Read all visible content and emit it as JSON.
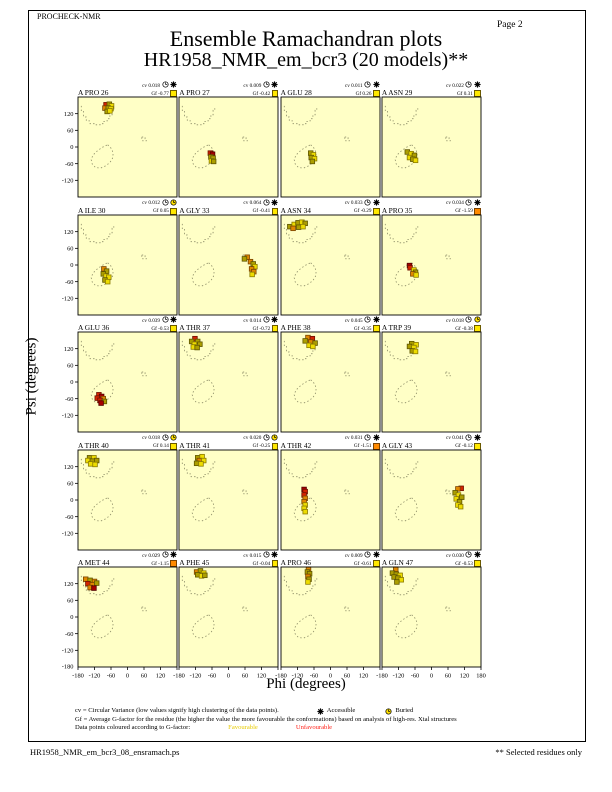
{
  "page": {
    "app_label": "PROCHECK-NMR",
    "page_label": "Page  2",
    "title": "Ensemble Ramachandran plots",
    "subtitle": "HR1958_NMR_em_bcr3 (20 models)**",
    "footer_left": "HR1958_NMR_em_bcr3_08_ensramach.ps",
    "footer_right": "** Selected residues only"
  },
  "labels": {
    "cv_prefix": "cv",
    "gf_prefix": "Gf"
  },
  "legend": {
    "line1": "cv = Circular Variance (low values signify high clustering of the data points).",
    "accessible_label": "Accessible",
    "buried_label": "Buried",
    "line2": "Gf = Average G-factor for the residue (the higher the value the more favourable the conformations) based on analysis of high-res. Xtal structures",
    "line3": "Data points coloured according to G-factor:",
    "favourable_label": "Favourable",
    "unfavourable_label": "Unfavourable"
  },
  "colors": {
    "plot_bg": "#FFFFC6",
    "region_dots": "#8B8B66",
    "gf_favourable": "#FFE800",
    "gf_unfavourable": "#FF8A00",
    "buried_icon_fill": "#FFE000",
    "point_colors": {
      "Y": "#EDDC00",
      "O": "#AC9E00",
      "G": "#E08800",
      "R": "#D42400",
      "D": "#A60000"
    },
    "point_strokes": {
      "Y": "#8A7A00",
      "O": "#5F5600",
      "G": "#7A4400",
      "R": "#6E1000",
      "D": "#550000"
    }
  },
  "axes": {
    "xlabel": "Phi (degrees)",
    "ylabel": "Psi (degrees)",
    "x_ticks": [
      -180,
      -120,
      -60,
      0,
      60,
      120,
      180
    ],
    "y_ticks": [
      120,
      60,
      0,
      -60,
      -120
    ],
    "y_bottom_tick": -180,
    "x_range": [
      -180,
      180
    ],
    "y_range": [
      -180,
      180
    ]
  },
  "chart_data": {
    "type": "scatter",
    "grid": {
      "cols": 4,
      "rows": 5
    },
    "regions": {
      "beta": [
        [
          -168,
          148
        ],
        [
          -168,
          128
        ],
        [
          -160,
          128
        ],
        [
          -160,
          108
        ],
        [
          -150,
          108
        ],
        [
          -150,
          94
        ],
        [
          -136,
          94
        ],
        [
          -136,
          84
        ],
        [
          -120,
          84
        ],
        [
          -120,
          80
        ],
        [
          -100,
          80
        ],
        [
          -100,
          84
        ],
        [
          -86,
          84
        ],
        [
          -86,
          92
        ],
        [
          -74,
          92
        ],
        [
          -74,
          102
        ],
        [
          -64,
          102
        ],
        [
          -64,
          116
        ],
        [
          -56,
          116
        ],
        [
          -56,
          132
        ],
        [
          -50,
          132
        ],
        [
          -50,
          146
        ]
      ],
      "alpha": [
        [
          -72,
          8
        ],
        [
          -58,
          -6
        ],
        [
          -52,
          -22
        ],
        [
          -54,
          -40
        ],
        [
          -64,
          -56
        ],
        [
          -80,
          -68
        ],
        [
          -98,
          -76
        ],
        [
          -116,
          -74
        ],
        [
          -128,
          -62
        ],
        [
          -132,
          -46
        ],
        [
          -126,
          -30
        ],
        [
          -112,
          -16
        ],
        [
          -96,
          -4
        ],
        [
          -82,
          4
        ],
        [
          -72,
          8
        ]
      ],
      "lalpha": [
        [
          52,
          36
        ],
        [
          64,
          36
        ],
        [
          64,
          30
        ],
        [
          68,
          30
        ],
        [
          68,
          22
        ],
        [
          56,
          22
        ],
        [
          56,
          28
        ],
        [
          52,
          28
        ],
        [
          52,
          36
        ]
      ]
    },
    "plots": [
      {
        "name": "A PRO 26",
        "cv": "0.018",
        "gf": "-0.77",
        "buried": false,
        "gf_class": "fav",
        "points": [
          [
            -78,
            152,
            "R"
          ],
          [
            -66,
            154,
            "O"
          ],
          [
            -58,
            148,
            "Y"
          ],
          [
            -82,
            140,
            "G"
          ],
          [
            -70,
            140,
            "O"
          ],
          [
            -60,
            138,
            "Y"
          ],
          [
            -74,
            128,
            "O"
          ],
          [
            -64,
            130,
            "Y"
          ]
        ]
      },
      {
        "name": "A PRO 27",
        "cv": "0.009",
        "gf": "-0.42",
        "buried": false,
        "gf_class": "fav",
        "points": [
          [
            -66,
            -22,
            "R"
          ],
          [
            -58,
            -26,
            "D"
          ],
          [
            -64,
            -36,
            "O"
          ],
          [
            -56,
            -40,
            "O"
          ],
          [
            -62,
            -50,
            "Y"
          ],
          [
            -54,
            -52,
            "O"
          ]
        ]
      },
      {
        "name": "A GLU 28",
        "cv": "0.011",
        "gf": "0.26",
        "buried": false,
        "gf_class": "fav",
        "points": [
          [
            -72,
            -22,
            "O"
          ],
          [
            -62,
            -28,
            "Y"
          ],
          [
            -70,
            -38,
            "O"
          ],
          [
            -58,
            -42,
            "Y"
          ],
          [
            -66,
            -52,
            "O"
          ]
        ]
      },
      {
        "name": "A ASN 29",
        "cv": "0.022",
        "gf": "0.31",
        "buried": false,
        "gf_class": "fav",
        "points": [
          [
            -88,
            -18,
            "O"
          ],
          [
            -74,
            -24,
            "Y"
          ],
          [
            -62,
            -30,
            "O"
          ],
          [
            -80,
            -38,
            "Y"
          ],
          [
            -68,
            -44,
            "O"
          ],
          [
            -58,
            -48,
            "Y"
          ]
        ]
      },
      {
        "name": "A ILE 30",
        "cv": "0.012",
        "gf": "0.05",
        "buried": true,
        "gf_class": "fav",
        "points": [
          [
            -86,
            -14,
            "G"
          ],
          [
            -76,
            -22,
            "O"
          ],
          [
            -88,
            -32,
            "O"
          ],
          [
            -78,
            -40,
            "Y"
          ],
          [
            -68,
            -44,
            "Y"
          ],
          [
            -82,
            -54,
            "O"
          ],
          [
            -72,
            -60,
            "Y"
          ]
        ]
      },
      {
        "name": "A GLY 33",
        "cv": "0.064",
        "gf": "-0.41",
        "buried": false,
        "gf_class": "fav",
        "points": [
          [
            68,
            28,
            "G"
          ],
          [
            58,
            22,
            "O"
          ],
          [
            80,
            12,
            "G"
          ],
          [
            90,
            4,
            "O"
          ],
          [
            96,
            -6,
            "Y"
          ],
          [
            84,
            -14,
            "G"
          ],
          [
            92,
            -24,
            "G"
          ],
          [
            86,
            -34,
            "Y"
          ]
        ]
      },
      {
        "name": "A ASN 34",
        "cv": "0.033",
        "gf": "-0.29",
        "buried": false,
        "gf_class": "fav",
        "points": [
          [
            -148,
            138,
            "O"
          ],
          [
            -132,
            146,
            "Y"
          ],
          [
            -118,
            152,
            "O"
          ],
          [
            -104,
            154,
            "Y"
          ],
          [
            -92,
            150,
            "O"
          ],
          [
            -136,
            132,
            "G"
          ],
          [
            -116,
            136,
            "O"
          ],
          [
            -100,
            138,
            "Y"
          ]
        ]
      },
      {
        "name": "A PRO 35",
        "cv": "0.034",
        "gf": "-1.59",
        "buried": false,
        "gf_class": "unfav",
        "points": [
          [
            -80,
            -2,
            "D"
          ],
          [
            -78,
            -10,
            "R"
          ],
          [
            -64,
            -18,
            "Y"
          ],
          [
            -58,
            -26,
            "O"
          ],
          [
            -68,
            -32,
            "G"
          ],
          [
            -56,
            -36,
            "Y"
          ]
        ]
      },
      {
        "name": "A GLU 36",
        "cv": "0.039",
        "gf": "-0.53",
        "buried": false,
        "gf_class": "fav",
        "points": [
          [
            -104,
            -46,
            "R"
          ],
          [
            -94,
            -52,
            "D"
          ],
          [
            -110,
            -58,
            "R"
          ],
          [
            -88,
            -60,
            "G"
          ],
          [
            -100,
            -66,
            "R"
          ],
          [
            -84,
            -70,
            "O"
          ],
          [
            -96,
            -76,
            "D"
          ]
        ]
      },
      {
        "name": "A THR 37",
        "cv": "0.014",
        "gf": "-0.72",
        "buried": false,
        "gf_class": "fav",
        "points": [
          [
            -122,
            156,
            "R"
          ],
          [
            -134,
            146,
            "O"
          ],
          [
            -112,
            146,
            "O"
          ],
          [
            -124,
            136,
            "Y"
          ],
          [
            -104,
            136,
            "O"
          ],
          [
            -128,
            126,
            "Y"
          ],
          [
            -114,
            124,
            "O"
          ]
        ]
      },
      {
        "name": "A PHE 38",
        "cv": "0.045",
        "gf": "-0.35",
        "buried": false,
        "gf_class": "fav",
        "points": [
          [
            -82,
            160,
            "G"
          ],
          [
            -66,
            156,
            "R"
          ],
          [
            -92,
            148,
            "O"
          ],
          [
            -72,
            144,
            "G"
          ],
          [
            -56,
            140,
            "O"
          ],
          [
            -78,
            132,
            "Y"
          ],
          [
            -64,
            128,
            "Y"
          ]
        ]
      },
      {
        "name": "A TRP 39",
        "cv": "0.018",
        "gf": "-0.38",
        "buried": true,
        "gf_class": "fav",
        "points": [
          [
            -72,
            138,
            "O"
          ],
          [
            -56,
            134,
            "Y"
          ],
          [
            -80,
            128,
            "O"
          ],
          [
            -64,
            124,
            "Y"
          ],
          [
            -70,
            112,
            "O"
          ],
          [
            -58,
            110,
            "Y"
          ]
        ]
      },
      {
        "name": "A THR 40",
        "cv": "0.018",
        "gf": "0.14",
        "buried": true,
        "gf_class": "fav",
        "points": [
          [
            -138,
            152,
            "O"
          ],
          [
            -122,
            152,
            "Y"
          ],
          [
            -144,
            142,
            "Y"
          ],
          [
            -128,
            140,
            "O"
          ],
          [
            -112,
            142,
            "O"
          ],
          [
            -134,
            130,
            "Y"
          ],
          [
            -118,
            128,
            "Y"
          ]
        ]
      },
      {
        "name": "A THR 41",
        "cv": "0.020",
        "gf": "-0.25",
        "buried": true,
        "gf_class": "fav",
        "points": [
          [
            -112,
            152,
            "O"
          ],
          [
            -96,
            156,
            "Y"
          ],
          [
            -106,
            142,
            "G"
          ],
          [
            -90,
            142,
            "Y"
          ],
          [
            -116,
            132,
            "O"
          ],
          [
            -100,
            130,
            "Y"
          ]
        ]
      },
      {
        "name": "A THR 42",
        "cv": "0.031",
        "gf": "-1.51",
        "buried": false,
        "gf_class": "unfav",
        "points": [
          [
            -96,
            38,
            "D"
          ],
          [
            -92,
            30,
            "R"
          ],
          [
            -96,
            18,
            "R"
          ],
          [
            -92,
            6,
            "G"
          ],
          [
            -96,
            -6,
            "G"
          ],
          [
            -92,
            -18,
            "Y"
          ],
          [
            -96,
            -30,
            "Y"
          ],
          [
            -92,
            -42,
            "Y"
          ]
        ]
      },
      {
        "name": "A GLY 43",
        "cv": "0.041",
        "gf": "-0.12",
        "buried": false,
        "gf_class": "fav",
        "points": [
          [
            108,
            42,
            "R"
          ],
          [
            96,
            40,
            "G"
          ],
          [
            86,
            26,
            "O"
          ],
          [
            98,
            18,
            "Y"
          ],
          [
            110,
            10,
            "O"
          ],
          [
            90,
            4,
            "Y"
          ],
          [
            102,
            -6,
            "O"
          ],
          [
            96,
            -18,
            "Y"
          ],
          [
            106,
            -24,
            "Y"
          ]
        ]
      },
      {
        "name": "A MET 44",
        "cv": "0.029",
        "gf": "-1.15",
        "buried": false,
        "gf_class": "unfav",
        "points": [
          [
            -152,
            136,
            "G"
          ],
          [
            -136,
            132,
            "O"
          ],
          [
            -120,
            128,
            "G"
          ],
          [
            -144,
            120,
            "R"
          ],
          [
            -128,
            116,
            "G"
          ],
          [
            -112,
            122,
            "O"
          ],
          [
            -136,
            106,
            "G"
          ],
          [
            -122,
            104,
            "D"
          ]
        ]
      },
      {
        "name": "A PHE 45",
        "cv": "0.015",
        "gf": "-0.04",
        "buried": false,
        "gf_class": "fav",
        "points": [
          [
            -116,
            162,
            "G"
          ],
          [
            -102,
            166,
            "O"
          ],
          [
            -90,
            158,
            "Y"
          ],
          [
            -112,
            152,
            "O"
          ],
          [
            -98,
            148,
            "Y"
          ],
          [
            -86,
            150,
            "O"
          ]
        ]
      },
      {
        "name": "A PRO 46",
        "cv": "0.009",
        "gf": "-0.61",
        "buried": false,
        "gf_class": "fav",
        "points": [
          [
            -80,
            172,
            "G"
          ],
          [
            -84,
            162,
            "O"
          ],
          [
            -76,
            156,
            "O"
          ],
          [
            -82,
            146,
            "G"
          ],
          [
            -78,
            136,
            "O"
          ],
          [
            -82,
            126,
            "Y"
          ]
        ]
      },
      {
        "name": "A GLN 47",
        "cv": "0.030",
        "gf": "-0.53",
        "buried": false,
        "gf_class": "fav",
        "points": [
          [
            -130,
            172,
            "G"
          ],
          [
            -142,
            158,
            "O"
          ],
          [
            -128,
            154,
            "O"
          ],
          [
            -114,
            150,
            "Y"
          ],
          [
            -136,
            144,
            "O"
          ],
          [
            -122,
            140,
            "O"
          ],
          [
            -110,
            134,
            "Y"
          ],
          [
            -126,
            126,
            "O"
          ]
        ]
      }
    ]
  }
}
